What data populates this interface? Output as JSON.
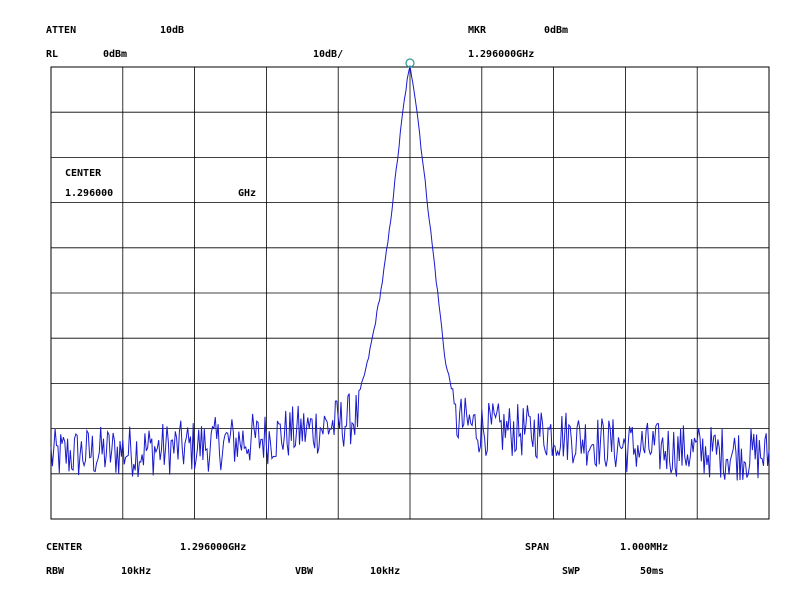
{
  "header": {
    "atten_label": "ATTEN",
    "atten_value": "10dB",
    "mkr_label": "MKR",
    "mkr_value": "0dBm",
    "rl_label": "RL",
    "rl_value": "0dBm",
    "scale": "10dB/",
    "mkr_freq": "1.296000GHz"
  },
  "overlay": {
    "center_label": "CENTER",
    "center_value": "1.296000",
    "center_unit": "GHz"
  },
  "footer": {
    "center_label": "CENTER",
    "center_value": "1.296000GHz",
    "span_label": "SPAN",
    "span_value": "1.000MHz",
    "rbw_label": "RBW",
    "rbw_value": "10kHz",
    "vbw_label": "VBW",
    "vbw_value": "10kHz",
    "swp_label": "SWP",
    "swp_value": "50ms"
  },
  "colors": {
    "trace": "#1a1acc",
    "marker": "#2a9a8a",
    "grid": "#000000"
  },
  "chart_data": {
    "type": "line",
    "x_unit": "MHz offset from center",
    "y_unit": "dBm",
    "xlim": [
      -0.5,
      0.5
    ],
    "ylim": [
      -100,
      0
    ],
    "x_divisions": 10,
    "y_divisions": 10,
    "grid": true,
    "marker": {
      "x": 0.0,
      "y": 0.0
    },
    "series": [
      {
        "peak_profile": {
          "x": [
            -0.07,
            -0.06,
            -0.05,
            -0.04,
            -0.03,
            -0.02,
            -0.01,
            -0.005,
            0.0,
            0.005,
            0.01,
            0.02,
            0.03,
            0.04,
            0.05,
            0.06
          ],
          "y": [
            -72,
            -66,
            -58,
            -49,
            -38,
            -24,
            -10,
            -4,
            0,
            -4,
            -10,
            -24,
            -38,
            -52,
            -66,
            -72
          ]
        },
        "noise_floor_trend": {
          "x": [
            -0.5,
            -0.3,
            -0.2,
            -0.1,
            -0.07,
            0.06,
            0.1,
            0.2,
            0.3,
            0.5
          ],
          "y": [
            -86,
            -84,
            -82,
            -79,
            -77,
            -78,
            -80,
            -81,
            -84,
            -86
          ]
        },
        "noise_amplitude_db": 6
      }
    ]
  }
}
